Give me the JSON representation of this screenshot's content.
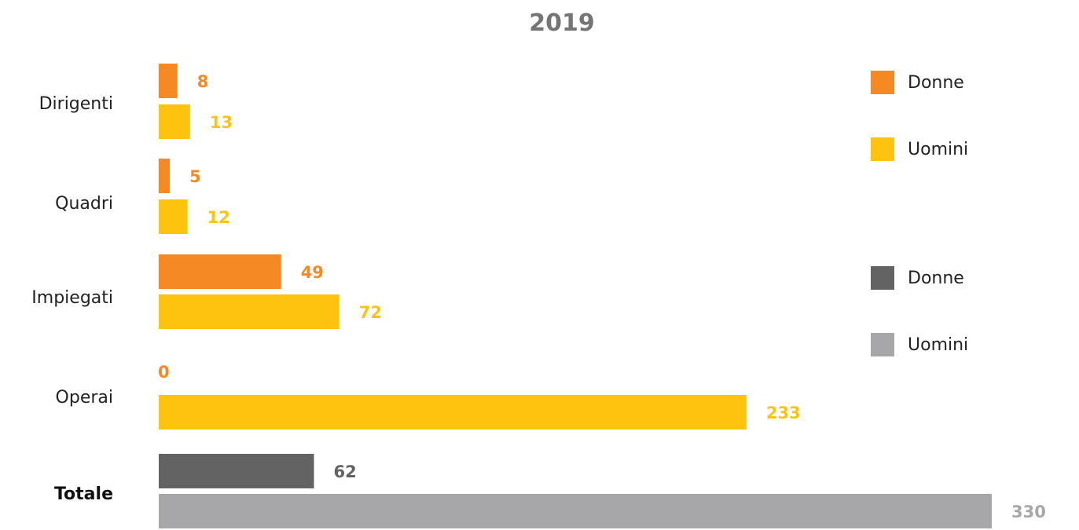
{
  "chart_data": {
    "type": "bar",
    "orientation": "horizontal",
    "title": "2019",
    "categories": [
      "Dirigenti",
      "Quadri",
      "Impiegati",
      "Operai",
      "Totale"
    ],
    "series": [
      {
        "name": "Donne",
        "values": [
          8,
          5,
          49,
          0,
          null
        ],
        "color": "#F58A24"
      },
      {
        "name": "Uomini",
        "values": [
          13,
          12,
          72,
          233,
          null
        ],
        "color": "#FDC30F"
      },
      {
        "name": "Donne",
        "values": [
          null,
          null,
          null,
          null,
          62
        ],
        "color": "#636363"
      },
      {
        "name": "Uomini",
        "values": [
          null,
          null,
          null,
          null,
          330
        ],
        "color": "#A7A7AA"
      }
    ],
    "xlim": [
      0,
      330
    ],
    "grid": false,
    "legend_position": "right"
  }
}
